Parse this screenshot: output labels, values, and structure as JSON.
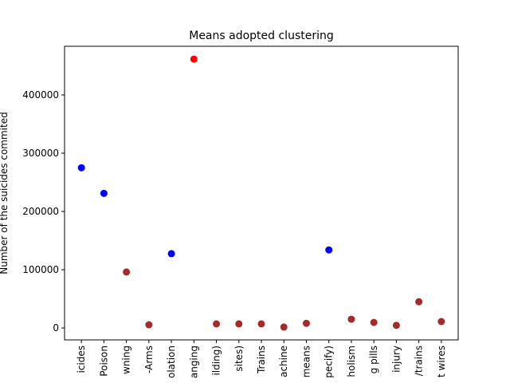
{
  "chart_data": {
    "type": "scatter",
    "title": "Means adopted clustering",
    "y_label": "Number of the suicides  commited",
    "categories": [
      "icides",
      "Poison",
      "wning",
      "-Arms",
      "olation",
      "anging",
      "ilding)",
      "sites)",
      "Trains",
      "achine",
      "means",
      "pecify)",
      "holism",
      "g pills",
      "injury",
      "/trains",
      "t wires"
    ],
    "values": [
      275000,
      231000,
      96000,
      5500,
      127500,
      461500,
      7000,
      7000,
      7000,
      1500,
      8000,
      134000,
      15000,
      9500,
      4500,
      45000,
      11000
    ],
    "colors": [
      "#0000ff",
      "#0000ff",
      "#a52a2a",
      "#a52a2a",
      "#0000ff",
      "#ff0000",
      "#a52a2a",
      "#a52a2a",
      "#a52a2a",
      "#a52a2a",
      "#a52a2a",
      "#0000ff",
      "#a52a2a",
      "#a52a2a",
      "#a52a2a",
      "#a52a2a",
      "#a52a2a"
    ],
    "ylim": [
      -20500,
      483500
    ],
    "yticks": [
      0,
      100000,
      200000,
      300000,
      400000
    ]
  }
}
